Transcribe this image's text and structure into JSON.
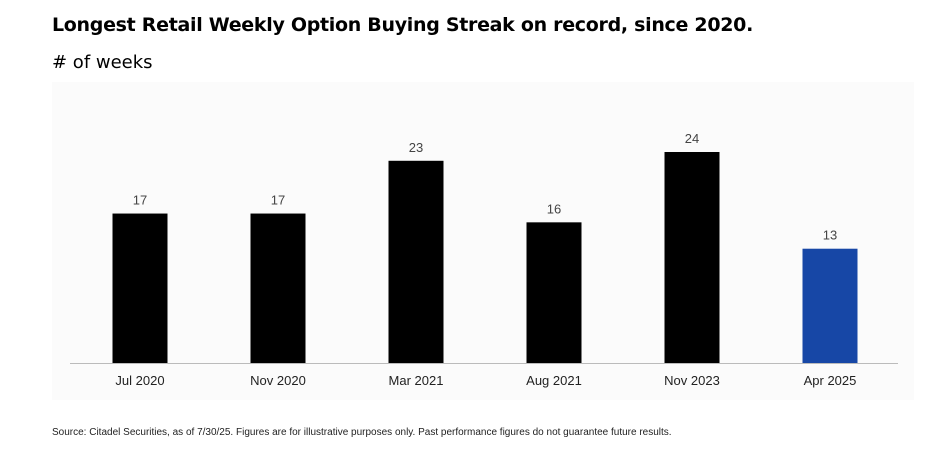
{
  "title": "Longest Retail Weekly Option Buying Streak on record, since 2020.",
  "subtitle": "# of weeks",
  "source": "Source: Citadel Securities, as of 7/30/25. Figures are for illustrative purposes only. Past performance figures do not guarantee future results.",
  "colors": {
    "default_bar": "#000000",
    "highlight_bar": "#1747a6",
    "axis": "#bbbbbb",
    "label": "#444444",
    "tick": "#222222"
  },
  "chart_data": {
    "type": "bar",
    "categories": [
      "Jul 2020",
      "Nov 2020",
      "Mar 2021",
      "Aug 2021",
      "Nov 2023",
      "Apr 2025"
    ],
    "values": [
      17,
      17,
      23,
      16,
      24,
      13
    ],
    "data_labels": [
      "17",
      "17",
      "23",
      "16",
      "24",
      "13"
    ],
    "highlighted": [
      "Apr 2025"
    ],
    "ylim": [
      0,
      24
    ],
    "grid": false,
    "legend": "none",
    "xlabel": "",
    "ylabel": ""
  }
}
